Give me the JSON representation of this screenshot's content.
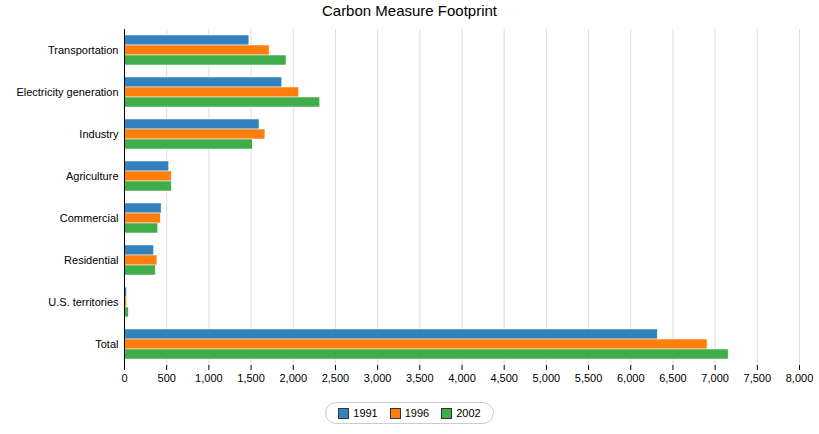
{
  "chart_data": {
    "type": "bar",
    "title": "Carbon Measure Footprint",
    "orientation": "horizontal",
    "grid": true,
    "legend": "bottom",
    "categories": [
      "Transportation",
      "Electricity generation",
      "Industry",
      "Agriculture",
      "Commercial",
      "Residential",
      "U.S. territories",
      "Total"
    ],
    "series": [
      {
        "name": "1991",
        "color": "#3182bd",
        "values": [
          1480,
          1870,
          1600,
          530,
          440,
          350,
          30,
          6320
        ]
      },
      {
        "name": "1996",
        "color": "#ff7f0e",
        "values": [
          1720,
          2070,
          1670,
          560,
          430,
          390,
          30,
          6910
        ]
      },
      {
        "name": "2002",
        "color": "#3fae49",
        "values": [
          1920,
          2320,
          1520,
          560,
          400,
          370,
          50,
          7160
        ]
      }
    ],
    "xlim": [
      0,
      8000
    ],
    "xticks": [
      0,
      500,
      {
        "value": 1000,
        "label": "1,000"
      },
      {
        "value": 1500,
        "label": "1,500"
      },
      {
        "value": 2000,
        "label": "2,000"
      },
      {
        "value": 2500,
        "label": "2,500"
      },
      {
        "value": 3000,
        "label": "3,000"
      },
      {
        "value": 3500,
        "label": "3,500"
      },
      {
        "value": 4000,
        "label": "4,000"
      },
      {
        "value": 4500,
        "label": "4,500"
      },
      {
        "value": 5000,
        "label": "5,000"
      },
      {
        "value": 5500,
        "label": "5,500"
      },
      {
        "value": 6000,
        "label": "6,000"
      },
      {
        "value": 6500,
        "label": "6,500"
      },
      {
        "value": 7000,
        "label": "7,000"
      },
      {
        "value": 7500,
        "label": "7,500"
      },
      {
        "value": 8000,
        "label": "8,000"
      }
    ]
  }
}
